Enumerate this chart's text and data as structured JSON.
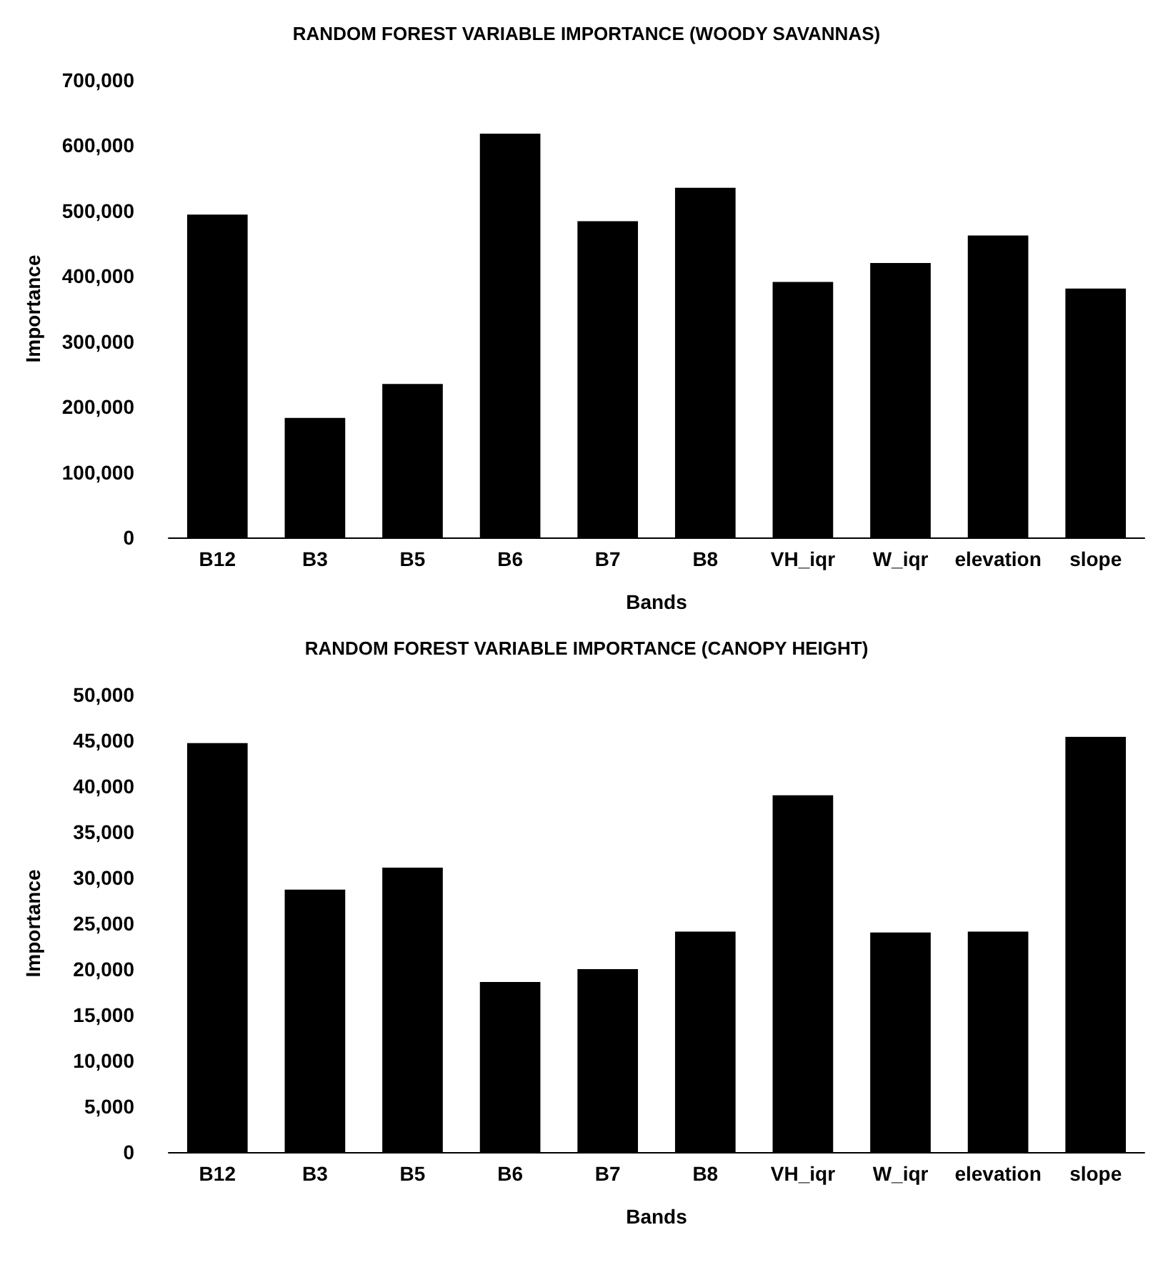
{
  "chart_data": [
    {
      "type": "bar",
      "title": "RANDOM FOREST VARIABLE IMPORTANCE (WOODY SAVANNAS)",
      "xlabel": "Bands",
      "ylabel": "Importance",
      "categories": [
        "B12",
        "B3",
        "B5",
        "B6",
        "B7",
        "B8",
        "VH_iqr",
        "W_iqr",
        "elevation",
        "slope"
      ],
      "values": [
        494000,
        183000,
        235000,
        618000,
        484000,
        535000,
        391000,
        420000,
        462000,
        381000
      ],
      "color": "#000000",
      "ylim": [
        0,
        700000
      ],
      "yticks": [
        0,
        {
          "value": 100000,
          "label": "100,000"
        },
        {
          "value": 200000,
          "label": "200,000"
        },
        {
          "value": 300000,
          "label": "300,000"
        },
        {
          "value": 400000,
          "label": "400,000"
        },
        {
          "value": 500000,
          "label": "500,000"
        },
        {
          "value": 600000,
          "label": "600,000"
        },
        {
          "value": 700000,
          "label": "700,000"
        }
      ]
    },
    {
      "type": "bar",
      "title": "RANDOM FOREST VARIABLE IMPORTANCE (CANOPY HEIGHT)",
      "xlabel": "Bands",
      "ylabel": "Importance",
      "categories": [
        "B12",
        "B3",
        "B5",
        "B6",
        "B7",
        "B8",
        "VH_iqr",
        "W_iqr",
        "elevation",
        "slope"
      ],
      "values": [
        44700,
        28700,
        31100,
        18600,
        20000,
        24100,
        39000,
        24000,
        24100,
        45400
      ],
      "color": "#000000",
      "ylim": [
        0,
        50000
      ],
      "yticks": [
        0,
        {
          "value": 5000,
          "label": "5,000"
        },
        {
          "value": 10000,
          "label": "10,000"
        },
        {
          "value": 15000,
          "label": "15,000"
        },
        {
          "value": 20000,
          "label": "20,000"
        },
        {
          "value": 25000,
          "label": "25,000"
        },
        {
          "value": 30000,
          "label": "30,000"
        },
        {
          "value": 35000,
          "label": "35,000"
        },
        {
          "value": 40000,
          "label": "40,000"
        },
        {
          "value": 45000,
          "label": "45,000"
        },
        {
          "value": 50000,
          "label": "50,000"
        }
      ]
    }
  ]
}
